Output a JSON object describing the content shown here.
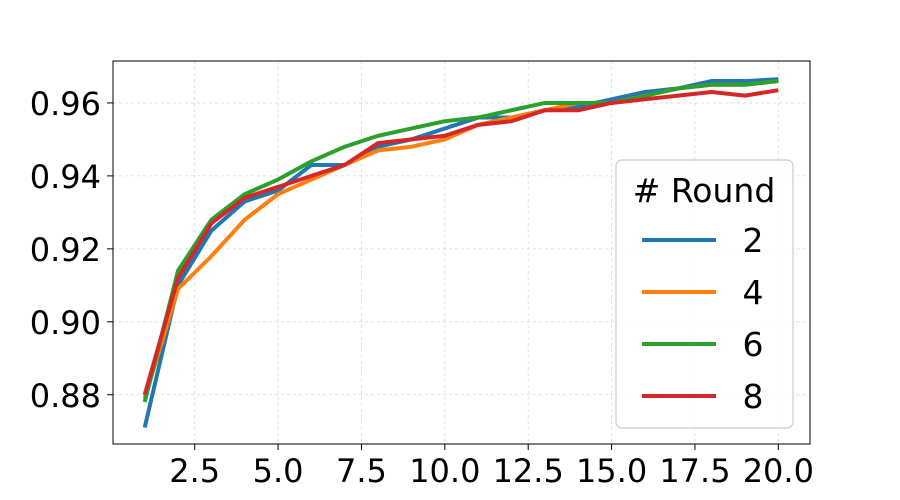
{
  "chart_data": {
    "type": "line",
    "title": "",
    "xlabel": "",
    "ylabel": "",
    "xlim": [
      0.05,
      20.95
    ],
    "ylim": [
      0.8665,
      0.9715
    ],
    "xticks": [
      2.5,
      5.0,
      7.5,
      10.0,
      12.5,
      15.0,
      17.5,
      20.0
    ],
    "xtick_labels": [
      "2.5",
      "5.0",
      "7.5",
      "10.0",
      "12.5",
      "15.0",
      "17.5",
      "20.0"
    ],
    "yticks": [
      0.88,
      0.9,
      0.92,
      0.94,
      0.96
    ],
    "ytick_labels": [
      "0.88",
      "0.90",
      "0.92",
      "0.94",
      "0.96"
    ],
    "grid": true,
    "legend": {
      "title": "# Round",
      "position": "center-right"
    },
    "x": [
      1,
      2,
      3,
      4,
      5,
      6,
      7,
      8,
      9,
      10,
      11,
      12,
      13,
      14,
      15,
      16,
      17,
      18,
      19,
      20
    ],
    "series": [
      {
        "name": "2",
        "color": "#1f77b4",
        "values": [
          0.871,
          0.91,
          0.925,
          0.933,
          0.936,
          0.943,
          0.943,
          0.948,
          0.95,
          0.953,
          0.956,
          0.956,
          0.958,
          0.959,
          0.961,
          0.963,
          0.964,
          0.966,
          0.966,
          0.9665
        ]
      },
      {
        "name": "4",
        "color": "#ff7f0e",
        "values": [
          0.879,
          0.909,
          0.918,
          0.928,
          0.935,
          0.939,
          0.943,
          0.947,
          0.948,
          0.95,
          0.954,
          0.956,
          0.958,
          0.96,
          0.96,
          0.962,
          0.964,
          0.965,
          0.965,
          0.966
        ]
      },
      {
        "name": "6",
        "color": "#2ca02c",
        "values": [
          0.878,
          0.914,
          0.928,
          0.935,
          0.939,
          0.944,
          0.948,
          0.951,
          0.953,
          0.955,
          0.956,
          0.958,
          0.96,
          0.96,
          0.96,
          0.962,
          0.964,
          0.965,
          0.965,
          0.966
        ]
      },
      {
        "name": "8",
        "color": "#d62728",
        "values": [
          0.88,
          0.912,
          0.927,
          0.934,
          0.937,
          0.94,
          0.943,
          0.949,
          0.95,
          0.951,
          0.954,
          0.955,
          0.958,
          0.958,
          0.96,
          0.961,
          0.962,
          0.963,
          0.962,
          0.9635
        ]
      }
    ]
  }
}
